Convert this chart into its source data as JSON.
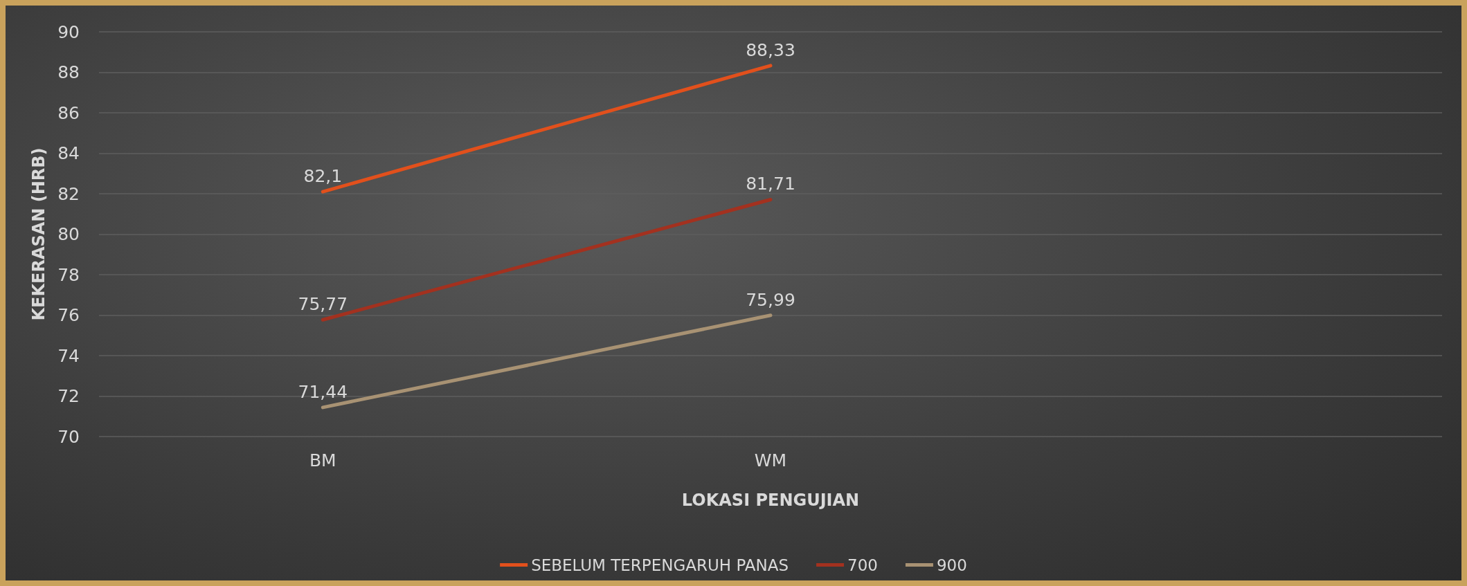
{
  "chart_data": {
    "type": "line",
    "xlabel": "LOKASI PENGUJIAN",
    "ylabel": "KEKERASAN (HRB)",
    "categories": [
      "BM",
      "WM",
      null
    ],
    "series": [
      {
        "name": "SEBELUM TERPENGARUH PANAS",
        "color": "#e2501c",
        "values": [
          82.1,
          88.33,
          null
        ],
        "value_labels": [
          "82,1",
          "88,33",
          null
        ]
      },
      {
        "name": "700",
        "color": "#a3311f",
        "values": [
          75.77,
          81.71,
          null
        ],
        "value_labels": [
          "75,77",
          "81,71",
          null
        ]
      },
      {
        "name": "900",
        "color": "#a89273",
        "values": [
          71.44,
          75.99,
          null
        ],
        "value_labels": [
          "71,44",
          "75,99",
          null
        ]
      }
    ],
    "ylim": [
      70,
      90
    ],
    "yticks": [
      70,
      72,
      74,
      76,
      78,
      80,
      82,
      84,
      86,
      88,
      90
    ],
    "grid": "y",
    "legend": "bottom",
    "marker": "none",
    "line_style": "solid"
  }
}
